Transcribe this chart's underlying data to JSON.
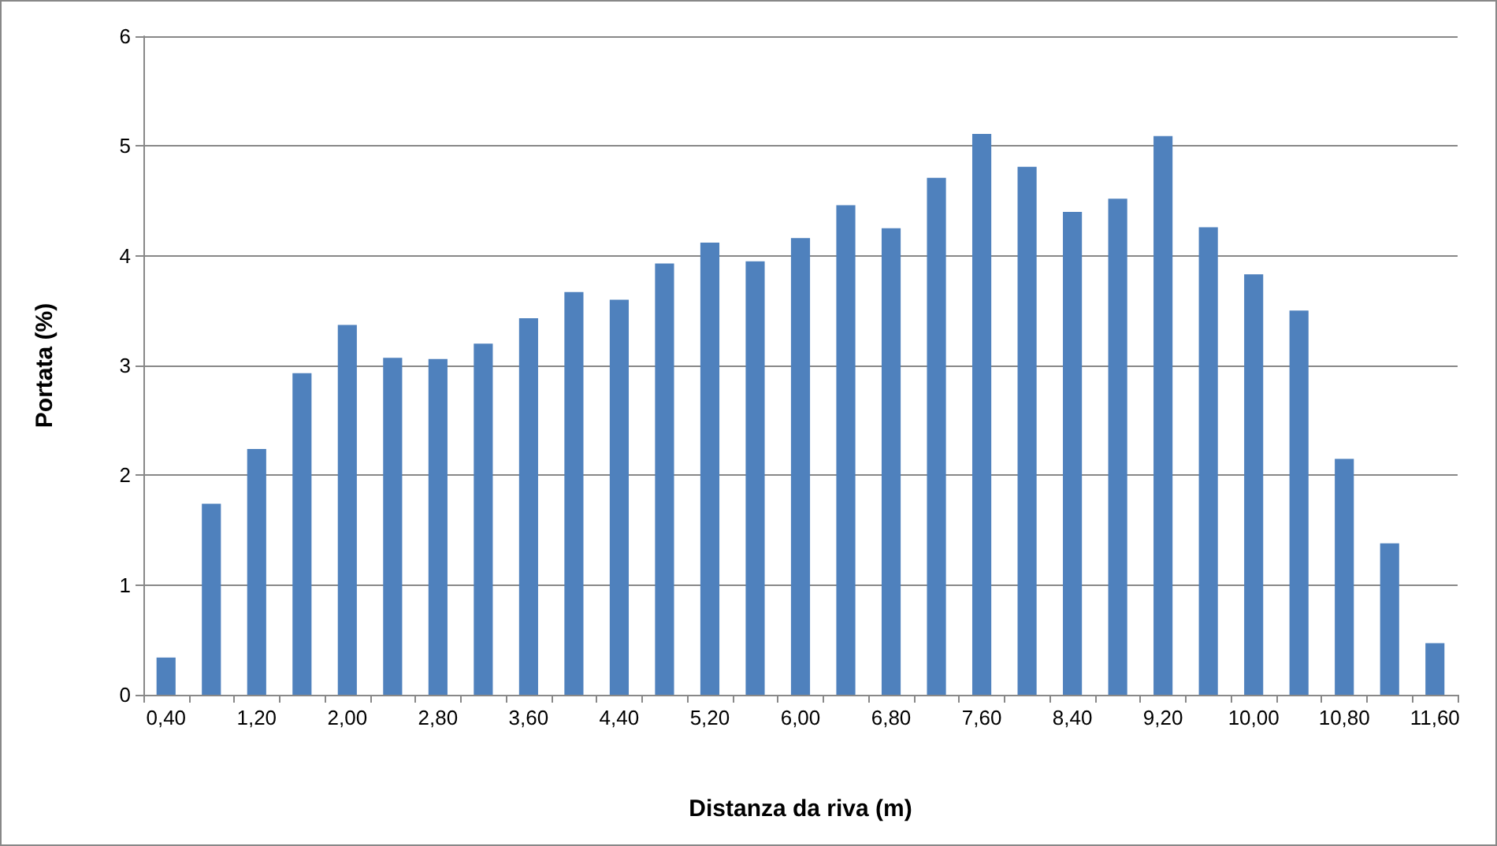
{
  "chart_data": {
    "type": "bar",
    "xlabel": "Distanza da riva (m)",
    "ylabel": "Portata (%)",
    "categories": [
      "0,40",
      null,
      "1,20",
      null,
      "2,00",
      null,
      "2,80",
      null,
      "3,60",
      null,
      "4,40",
      null,
      "5,20",
      null,
      "6,00",
      null,
      "6,80",
      null,
      "7,60",
      null,
      "8,40",
      null,
      "9,20",
      null,
      "10,00",
      null,
      "10,80",
      null,
      "11,60"
    ],
    "values": [
      0.34,
      1.74,
      2.24,
      2.93,
      3.37,
      3.07,
      3.06,
      3.2,
      3.43,
      3.67,
      3.6,
      3.93,
      4.12,
      3.95,
      4.16,
      4.46,
      4.25,
      4.71,
      5.11,
      4.81,
      4.4,
      4.52,
      5.09,
      4.26,
      3.83,
      3.5,
      2.15,
      1.38,
      0.47
    ],
    "color": "#4f81bd",
    "ylim": [
      0,
      6
    ],
    "yticks": [
      0,
      1,
      2,
      3,
      4,
      5,
      6
    ],
    "grid": "y"
  }
}
